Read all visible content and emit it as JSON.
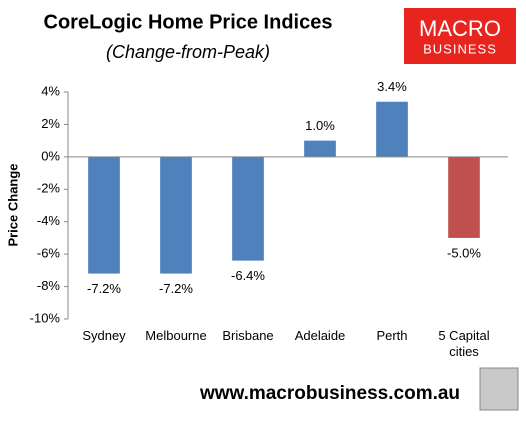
{
  "chart_data": {
    "type": "bar",
    "title": "CoreLogic Home Price Indices",
    "subtitle": "(Change-from-Peak)",
    "y_label": "Price Change",
    "categories": [
      "Sydney",
      "Melbourne",
      "Brisbane",
      "Adelaide",
      "Perth",
      "5 Capital cities"
    ],
    "values": [
      -7.2,
      -7.2,
      -6.4,
      1.0,
      3.4,
      -5.0
    ],
    "value_labels": [
      "-7.2%",
      "-7.2%",
      "-6.4%",
      "1.0%",
      "3.4%",
      "-5.0%"
    ],
    "colors": [
      "#4f81bd",
      "#4f81bd",
      "#4f81bd",
      "#4f81bd",
      "#4f81bd",
      "#c0504d"
    ],
    "ylim": [
      -10,
      4
    ],
    "yticks": [
      {
        "value": -10,
        "label": "-10%"
      },
      {
        "value": -8,
        "label": "-8%"
      },
      {
        "value": -6,
        "label": "-6%"
      },
      {
        "value": -4,
        "label": "-4%"
      },
      {
        "value": -2,
        "label": "-2%"
      },
      {
        "value": 0,
        "label": "0%"
      },
      {
        "value": 2,
        "label": "2%"
      },
      {
        "value": 4,
        "label": "4%"
      }
    ],
    "grid": false
  },
  "logo": {
    "line1": "MACRO",
    "line2": "BUSINESS"
  },
  "footer": "www.macrobusiness.com.au"
}
